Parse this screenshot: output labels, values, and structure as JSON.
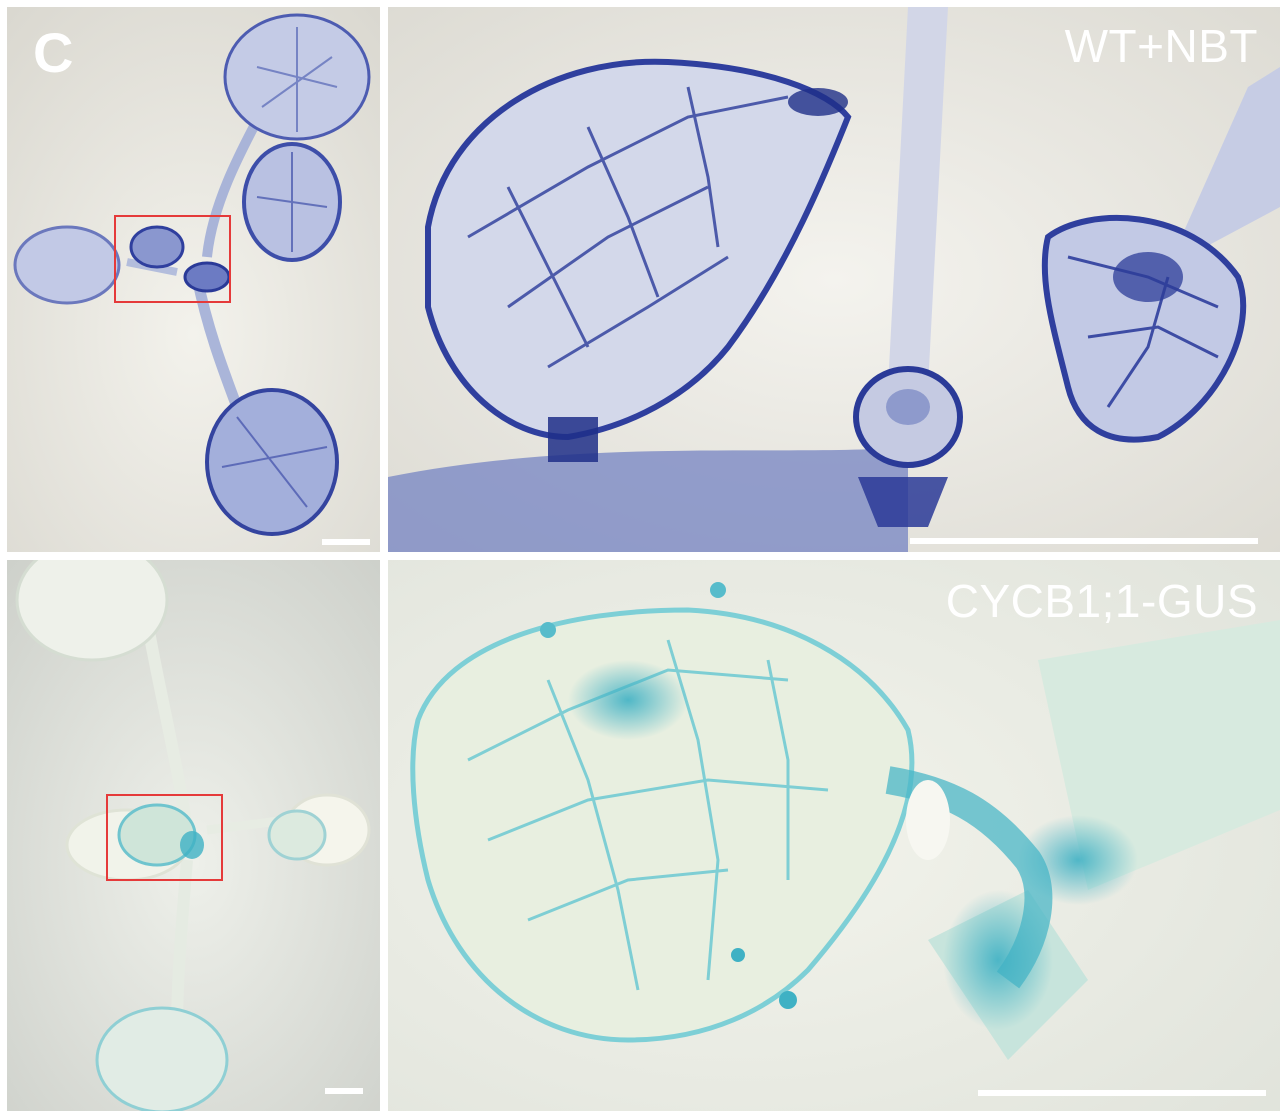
{
  "figure": {
    "panel_letter": "C",
    "rows": [
      {
        "label": "WT+NBT",
        "stain_color": "#2f3f9e"
      },
      {
        "label": "CYCB1;1-GUS",
        "stain_color": "#3fb1c4"
      }
    ]
  },
  "colors": {
    "zoom_box": "#e53a3a",
    "background_wt": "#e9e7df",
    "background_gus": "#e3e6df",
    "scale_bar": "#ffffff"
  }
}
